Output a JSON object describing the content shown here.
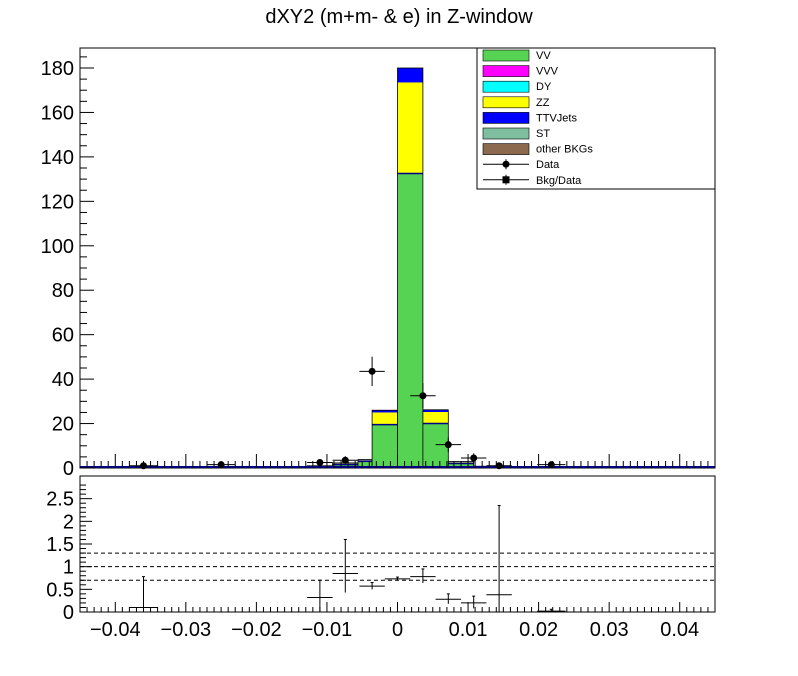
{
  "chart_data": {
    "type": "bar",
    "title": "dXY2 (m+m- & e) in Z-window",
    "stacked": true,
    "xlim": [
      -0.045,
      0.045
    ],
    "upper_ylim": [
      0,
      189
    ],
    "upper_yticks": [
      "0",
      "20",
      "40",
      "60",
      "80",
      "100",
      "120",
      "140",
      "160",
      "180"
    ],
    "lower_ylim": [
      0,
      3
    ],
    "lower_yticks": [
      "0",
      "0.5",
      "1",
      "1.5",
      "2",
      "2.5"
    ],
    "xticks": [
      "−0.04",
      "−0.03",
      "−0.02",
      "−0.01",
      "0",
      "0.01",
      "0.02",
      "0.03",
      "0.04"
    ],
    "bin_edges": [
      -0.0036,
      0.0,
      0.0036
    ],
    "side_bins": [
      {
        "x0": -0.0128,
        "x1": -0.0092,
        "vv": 0.5,
        "zz": 0.2,
        "ttv": 0.3
      },
      {
        "x0": -0.0092,
        "x1": -0.0056,
        "vv": 1.5,
        "zz": 0.5,
        "ttv": 0.3
      },
      {
        "x0": -0.0056,
        "x1": -0.0036,
        "vv": 3.0,
        "zz": 0.5,
        "ttv": 0.3
      },
      {
        "x0": -0.0036,
        "x1": 0.0,
        "vv": 19.5,
        "zz": 5.5,
        "ttv": 1.0
      },
      {
        "x0": 0.0,
        "x1": 0.0036,
        "vv": 132.5,
        "zz": 41.0,
        "ttv": 6.5
      },
      {
        "x0": 0.0036,
        "x1": 0.0072,
        "vv": 20.0,
        "zz": 5.2,
        "ttv": 1.0
      },
      {
        "x0": 0.0072,
        "x1": 0.0108,
        "vv": 2.0,
        "zz": 0.6,
        "ttv": 0.3
      },
      {
        "x0": 0.0108,
        "x1": 0.0144,
        "vv": 0.4,
        "zz": 0.2,
        "ttv": 0.2
      }
    ],
    "data_points": [
      {
        "x": -0.036,
        "y": 1.0,
        "xerr": 0.002,
        "yerr": 1.0
      },
      {
        "x": -0.025,
        "y": 1.5,
        "xerr": 0.002,
        "yerr": 1.2
      },
      {
        "x": -0.011,
        "y": 2.5,
        "xerr": 0.0018,
        "yerr": 1.5
      },
      {
        "x": -0.0074,
        "y": 3.5,
        "xerr": 0.0018,
        "yerr": 1.8
      },
      {
        "x": -0.0036,
        "y": 43.5,
        "xerr": 0.0018,
        "yerr": 6.6
      },
      {
        "x": 0.0036,
        "y": 32.5,
        "xerr": 0.0018,
        "yerr": 5.7
      },
      {
        "x": 0.0072,
        "y": 10.5,
        "xerr": 0.0018,
        "yerr": 3.2
      },
      {
        "x": 0.0108,
        "y": 4.5,
        "xerr": 0.0018,
        "yerr": 2.1
      },
      {
        "x": 0.0144,
        "y": 1.0,
        "xerr": 0.0018,
        "yerr": 1.0
      },
      {
        "x": 0.0218,
        "y": 1.5,
        "xerr": 0.002,
        "yerr": 1.2
      }
    ],
    "ratio_points": [
      {
        "x": -0.036,
        "y": 0.1,
        "xerr": 0.002,
        "ylo": 0.0,
        "yhi": 0.78
      },
      {
        "x": -0.025,
        "y": 0.0,
        "xerr": 0.0,
        "ylo": 0.0,
        "yhi": 0.0
      },
      {
        "x": -0.011,
        "y": 0.32,
        "xerr": 0.0018,
        "ylo": 0.0,
        "yhi": 0.7
      },
      {
        "x": -0.0074,
        "y": 0.85,
        "xerr": 0.0018,
        "ylo": 0.43,
        "yhi": 1.6
      },
      {
        "x": -0.0036,
        "y": 0.57,
        "xerr": 0.0018,
        "ylo": 0.5,
        "yhi": 0.65
      },
      {
        "x": 0.0,
        "y": 0.73,
        "xerr": 0.0018,
        "ylo": 0.69,
        "yhi": 0.77
      },
      {
        "x": 0.0036,
        "y": 0.78,
        "xerr": 0.0018,
        "ylo": 0.64,
        "yhi": 0.95
      },
      {
        "x": 0.0072,
        "y": 0.28,
        "xerr": 0.0018,
        "ylo": 0.18,
        "yhi": 0.4
      },
      {
        "x": 0.0108,
        "y": 0.2,
        "xerr": 0.0018,
        "ylo": 0.08,
        "yhi": 0.35
      },
      {
        "x": 0.0144,
        "y": 0.38,
        "xerr": 0.0018,
        "ylo": 0.0,
        "yhi": 2.35
      },
      {
        "x": 0.0218,
        "y": 0.02,
        "xerr": 0.002,
        "ylo": 0.0,
        "yhi": 0.06
      }
    ],
    "ratio_lines": [
      1.3,
      1.0,
      0.7
    ],
    "legend": {
      "placement": "top-right",
      "entries": [
        {
          "label": "VV",
          "color": "#57d353",
          "kind": "box"
        },
        {
          "label": "VVV",
          "color": "#ff00ff",
          "kind": "box"
        },
        {
          "label": "DY",
          "color": "#00ffff",
          "kind": "box"
        },
        {
          "label": "ZZ",
          "color": "#ffff00",
          "kind": "box"
        },
        {
          "label": "TTVJets",
          "color": "#0000ff",
          "kind": "box"
        },
        {
          "label": "ST",
          "color": "#7fbf9f",
          "kind": "box"
        },
        {
          "label": "other BKGs",
          "color": "#8b6a50",
          "kind": "box"
        },
        {
          "label": "Data",
          "color": "#000000",
          "kind": "circle"
        },
        {
          "label": "Bkg/Data",
          "color": "#000000",
          "kind": "square"
        }
      ]
    },
    "colors": {
      "vv": "#57d353",
      "zz": "#ffff00",
      "ttv": "#0000ff",
      "baseline": "#00008b"
    }
  }
}
